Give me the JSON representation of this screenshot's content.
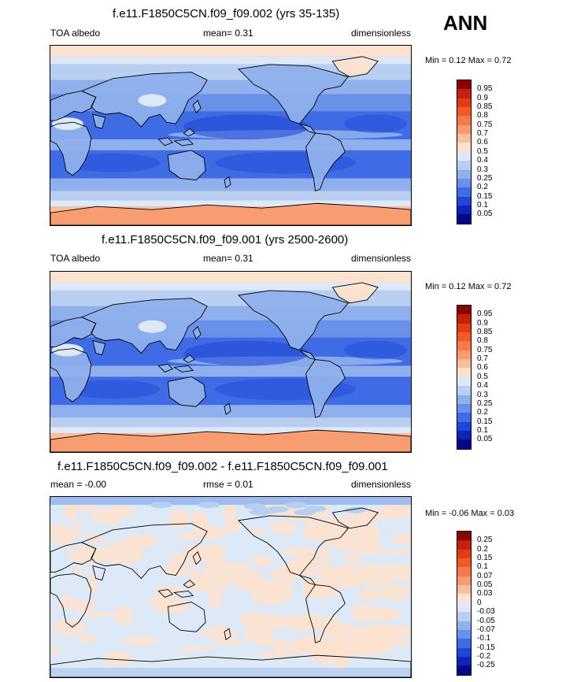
{
  "season": "ANN",
  "panels": [
    {
      "title": "f.e11.F1850C5CN.f09_f09.002 (yrs 35-135)",
      "left_label": "TOA albedo",
      "center_label": "mean=  0.31",
      "right_label": "dimensionless",
      "minmax": "Min =   0.12 Max =   0.72",
      "map_style": "absolute"
    },
    {
      "title": "f.e11.F1850C5CN.f09_f09.001 (yrs 2500-2600)",
      "left_label": "TOA albedo",
      "center_label": "mean=  0.31",
      "right_label": "dimensionless",
      "minmax": "Min =  0.12 Max =  0.72",
      "map_style": "absolute"
    },
    {
      "title": "f.e11.F1850C5CN.f09_f09.002 - f.e11.F1850C5CN.f09_f09.001",
      "left_label": "mean =  -0.00",
      "center_label": "rmse =   0.01",
      "right_label": "dimensionless",
      "minmax": "Min =  -0.06 Max =   0.03",
      "map_style": "difference"
    }
  ],
  "chart_data": [
    {
      "type": "heatmap",
      "title": "f.e11.F1850C5CN.f09_f09.002 (yrs 35-135)",
      "variable": "TOA albedo",
      "units": "dimensionless",
      "mean": 0.31,
      "min": 0.12,
      "max": 0.72,
      "colorbar_levels": [
        "0.95",
        "0.9",
        "0.85",
        "0.8",
        "0.75",
        "0.7",
        "0.6",
        "0.5",
        "0.4",
        "0.3",
        "0.25",
        "0.2",
        "0.15",
        "0.1",
        "0.05"
      ],
      "colorbar_colors": [
        "#8b0000",
        "#c1220e",
        "#e53b12",
        "#f2592a",
        "#f57a4a",
        "#f89b70",
        "#fbbf9e",
        "#fde2cf",
        "#dde9f7",
        "#b9cff1",
        "#8fb0ec",
        "#6a91ea",
        "#3f6ce4",
        "#1f46d6",
        "#1022b8",
        "#000a88"
      ]
    },
    {
      "type": "heatmap",
      "title": "f.e11.F1850C5CN.f09_f09.001 (yrs 2500-2600)",
      "variable": "TOA albedo",
      "units": "dimensionless",
      "mean": 0.31,
      "min": 0.12,
      "max": 0.72,
      "colorbar_levels": [
        "0.95",
        "0.9",
        "0.85",
        "0.8",
        "0.75",
        "0.7",
        "0.6",
        "0.5",
        "0.4",
        "0.3",
        "0.25",
        "0.2",
        "0.15",
        "0.1",
        "0.05"
      ],
      "colorbar_colors": [
        "#8b0000",
        "#c1220e",
        "#e53b12",
        "#f2592a",
        "#f57a4a",
        "#f89b70",
        "#fbbf9e",
        "#fde2cf",
        "#dde9f7",
        "#b9cff1",
        "#8fb0ec",
        "#6a91ea",
        "#3f6ce4",
        "#1f46d6",
        "#1022b8",
        "#000a88"
      ]
    },
    {
      "type": "heatmap",
      "title": "f.e11.F1850C5CN.f09_f09.002 - f.e11.F1850C5CN.f09_f09.001",
      "units": "dimensionless",
      "mean": -0.0,
      "rmse": 0.01,
      "min": -0.06,
      "max": 0.03,
      "colorbar_levels": [
        "0.25",
        "0.2",
        "0.15",
        "0.1",
        "0.07",
        "0.05",
        "0.03",
        "0",
        "-0.03",
        "-0.05",
        "-0.07",
        "-0.1",
        "-0.15",
        "-0.2",
        "-0.25"
      ],
      "colorbar_colors": [
        "#8b0000",
        "#c1220e",
        "#e53b12",
        "#f2592a",
        "#f57a4a",
        "#f89b70",
        "#fbbf9e",
        "#fde2cf",
        "#dde9f7",
        "#b9cff1",
        "#8fb0ec",
        "#6a91ea",
        "#3f6ce4",
        "#1f46d6",
        "#1022b8",
        "#000a88"
      ]
    }
  ]
}
